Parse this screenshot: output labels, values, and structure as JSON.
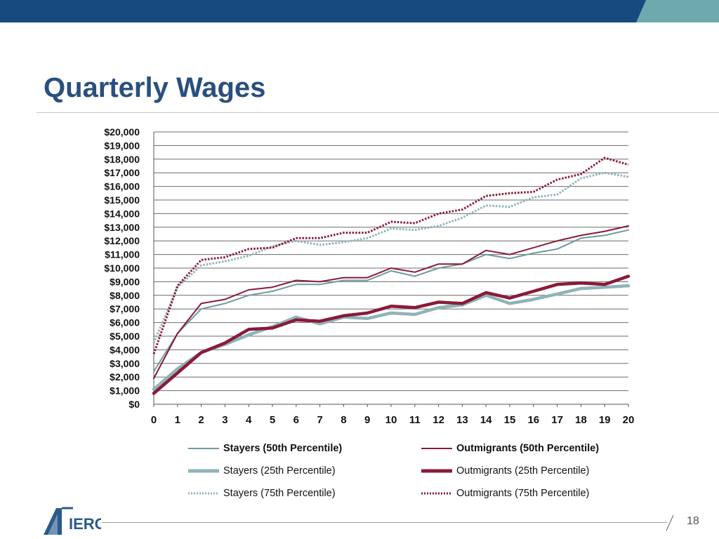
{
  "slide": {
    "title": "Quarterly Wages",
    "page_number": "18",
    "logo_text": "IERC",
    "colors": {
      "banner": "#174a7e",
      "banner_accent": "#6fa9b0",
      "title": "#2a4f7e"
    }
  },
  "chart_data": {
    "type": "line",
    "title": "",
    "xlabel": "",
    "ylabel": "",
    "x": [
      0,
      1,
      2,
      3,
      4,
      5,
      6,
      7,
      8,
      9,
      10,
      11,
      12,
      13,
      14,
      15,
      16,
      17,
      18,
      19,
      20
    ],
    "ylim": [
      0,
      20000
    ],
    "y_ticks": [
      "$0",
      "$1,000",
      "$2,000",
      "$3,000",
      "$4,000",
      "$5,000",
      "$6,000",
      "$7,000",
      "$8,000",
      "$9,000",
      "$10,000",
      "$11,000",
      "$12,000",
      "$13,000",
      "$14,000",
      "$15,000",
      "$16,000",
      "$17,000",
      "$18,000",
      "$19,000",
      "$20,000"
    ],
    "grid": "horizontal",
    "legend_position": "bottom",
    "series": [
      {
        "name": "Stayers (50th Percentile)",
        "color": "#6e9aa0",
        "style": "thin-solid",
        "values": [
          2400,
          5200,
          7000,
          7400,
          8000,
          8300,
          8800,
          8800,
          9100,
          9100,
          9800,
          9400,
          10000,
          10300,
          11000,
          10700,
          11100,
          11400,
          12200,
          12400,
          12800
        ]
      },
      {
        "name": "Stayers (25th Percentile)",
        "color": "#8fb3b8",
        "style": "thick-solid",
        "values": [
          1100,
          2600,
          3800,
          4400,
          5100,
          5700,
          6400,
          5900,
          6400,
          6300,
          6700,
          6600,
          7100,
          7300,
          8000,
          7400,
          7700,
          8100,
          8500,
          8600,
          8700
        ]
      },
      {
        "name": "Stayers (75th Percentile)",
        "color": "#8fb3b8",
        "style": "dotted",
        "values": [
          4500,
          8600,
          10200,
          10500,
          10900,
          11600,
          12000,
          11700,
          11900,
          12200,
          12900,
          12800,
          13100,
          13700,
          14600,
          14500,
          15200,
          15400,
          16600,
          17000,
          16700
        ]
      },
      {
        "name": "Outmigrants (50th Percentile)",
        "color": "#8a1a38",
        "style": "thin-solid",
        "values": [
          1900,
          5200,
          7400,
          7700,
          8400,
          8600,
          9100,
          9000,
          9300,
          9300,
          10000,
          9700,
          10300,
          10300,
          11300,
          11000,
          11500,
          12000,
          12400,
          12700,
          13100
        ]
      },
      {
        "name": "Outmigrants (25th Percentile)",
        "color": "#8a1a38",
        "style": "thick-solid",
        "values": [
          800,
          2300,
          3800,
          4500,
          5500,
          5600,
          6200,
          6100,
          6500,
          6700,
          7200,
          7100,
          7500,
          7400,
          8200,
          7800,
          8300,
          8800,
          8900,
          8800,
          9400
        ]
      },
      {
        "name": "Outmigrants (75th Percentile)",
        "color": "#8a1a38",
        "style": "dotted",
        "values": [
          3700,
          8700,
          10600,
          10800,
          11400,
          11500,
          12200,
          12200,
          12600,
          12600,
          13400,
          13300,
          14000,
          14300,
          15300,
          15500,
          15600,
          16500,
          16900,
          18100,
          17600
        ]
      }
    ]
  },
  "legend": [
    {
      "label": "Stayers (50th Percentile)"
    },
    {
      "label": "Outmigrants (50th Percentile)"
    },
    {
      "label": "Stayers (25th Percentile)"
    },
    {
      "label": "Outmigrants (25th Percentile)"
    },
    {
      "label": "Stayers (75th Percentile)"
    },
    {
      "label": "Outmigrants (75th Percentile)"
    }
  ]
}
